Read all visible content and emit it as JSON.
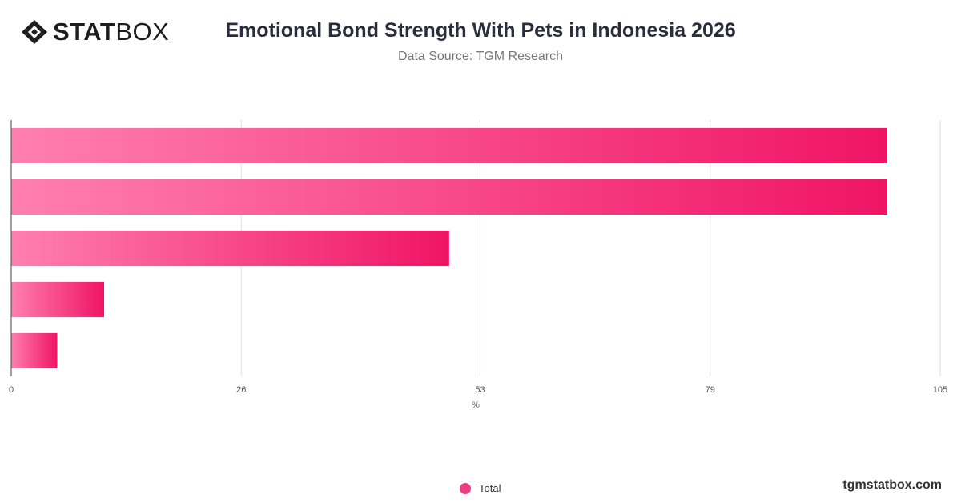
{
  "header": {
    "logo_bold": "STAT",
    "logo_light": "BOX",
    "title": "Emotional Bond Strength With Pets in Indonesia 2026",
    "subtitle": "Data Source: TGM Research"
  },
  "chart_data": {
    "type": "bar",
    "orientation": "horizontal",
    "categories": [
      "",
      "",
      "",
      "",
      ""
    ],
    "series": [
      {
        "name": "Total",
        "values": [
          99,
          99,
          49.5,
          10.5,
          5.2
        ]
      }
    ],
    "xlabel": "%",
    "ylabel": "",
    "xlim": [
      0,
      105
    ],
    "x_ticks": [
      "0",
      "26",
      "53",
      "79",
      "105"
    ],
    "grid": true,
    "legend_position": "bottom-center",
    "colors": {
      "bar_start": "#ff7fb0",
      "bar_end": "#f01466"
    }
  },
  "legend": {
    "items": [
      {
        "label": "Total",
        "color": "#ee3f82"
      }
    ]
  },
  "footer": {
    "website": "tgmstatbox.com"
  }
}
